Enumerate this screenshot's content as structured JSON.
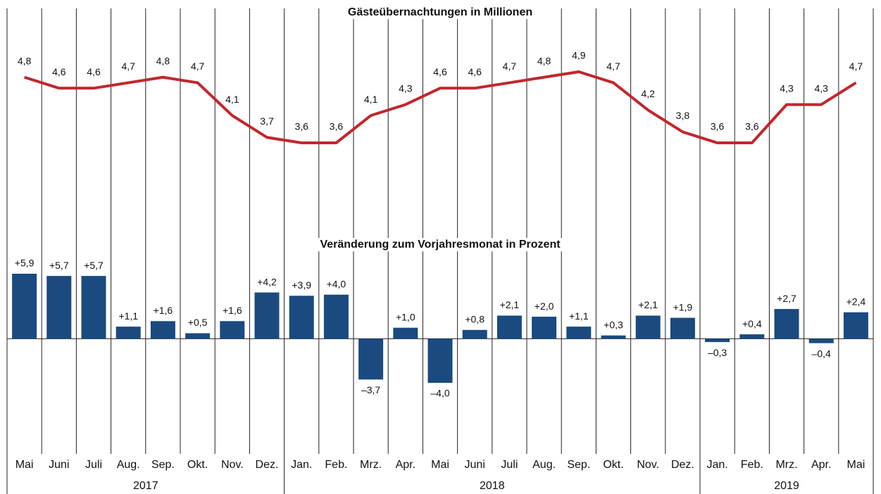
{
  "chart_data": [
    {
      "type": "line",
      "title": "Gästeübernachtungen in Millionen",
      "color": "#c1272d",
      "categories": [
        "Mai",
        "Juni",
        "Juli",
        "Aug.",
        "Sep.",
        "Okt.",
        "Nov.",
        "Dez.",
        "Jan.",
        "Feb.",
        "Mrz.",
        "Apr.",
        "Mai",
        "Juni",
        "Juli",
        "Aug.",
        "Sep.",
        "Okt.",
        "Nov.",
        "Dez.",
        "Jan.",
        "Feb.",
        "Mrz.",
        "Apr.",
        "Mai"
      ],
      "values": [
        4.8,
        4.6,
        4.6,
        4.7,
        4.8,
        4.7,
        4.1,
        3.7,
        3.6,
        3.6,
        4.1,
        4.3,
        4.6,
        4.6,
        4.7,
        4.8,
        4.9,
        4.7,
        4.2,
        3.8,
        3.6,
        3.6,
        4.3,
        4.3,
        4.7
      ],
      "value_labels": [
        "4,8",
        "4,6",
        "4,6",
        "4,7",
        "4,8",
        "4,7",
        "4,1",
        "3,7",
        "3,6",
        "3,6",
        "4,1",
        "4,3",
        "4,6",
        "4,6",
        "4,7",
        "4,8",
        "4,9",
        "4,7",
        "4,2",
        "3,8",
        "3,6",
        "3,6",
        "4,3",
        "4,3",
        "4,7"
      ]
    },
    {
      "type": "bar",
      "title": "Veränderung zum Vorjahresmonat in Prozent",
      "color": "#1a4a80",
      "categories": [
        "Mai",
        "Juni",
        "Juli",
        "Aug.",
        "Sep.",
        "Okt.",
        "Nov.",
        "Dez.",
        "Jan.",
        "Feb.",
        "Mrz.",
        "Apr.",
        "Mai",
        "Juni",
        "Juli",
        "Aug.",
        "Sep.",
        "Okt.",
        "Nov.",
        "Dez.",
        "Jan.",
        "Feb.",
        "Mrz.",
        "Apr.",
        "Mai"
      ],
      "values": [
        5.9,
        5.7,
        5.7,
        1.1,
        1.6,
        0.5,
        1.6,
        4.2,
        3.9,
        4.0,
        -3.7,
        1.0,
        -4.0,
        0.8,
        2.1,
        2.0,
        1.1,
        0.3,
        2.1,
        1.9,
        -0.3,
        0.4,
        2.7,
        -0.4,
        2.4
      ],
      "value_labels": [
        "+5,9",
        "+5,7",
        "+5,7",
        "+1,1",
        "+1,6",
        "+0,5",
        "+1,6",
        "+4,2",
        "+3,9",
        "+4,0",
        "–3,7",
        "+1,0",
        "–4,0",
        "+0,8",
        "+2,1",
        "+2,0",
        "+1,1",
        "+0,3",
        "+2,1",
        "+1,9",
        "–0,3",
        "+0,4",
        "+2,7",
        "–0,4",
        "+2,4"
      ]
    }
  ],
  "groups": [
    {
      "name": "2017",
      "size": 8
    },
    {
      "name": "2018",
      "size": 12
    },
    {
      "name": "2019",
      "size": 5
    }
  ]
}
